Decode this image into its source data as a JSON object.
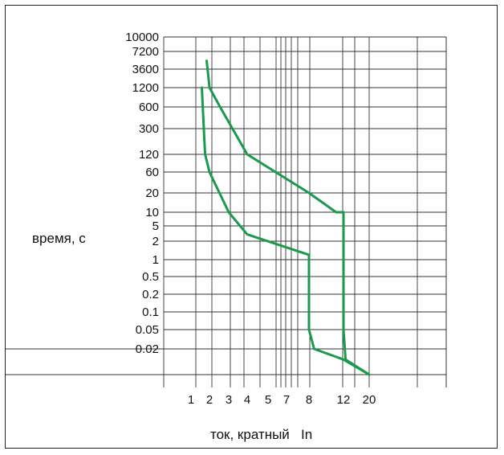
{
  "chart_data": {
    "type": "line",
    "ylabel": "время, с",
    "xlabel": "ток, кратный   In",
    "y_ticks": [
      "10000",
      "7200",
      "3600",
      "1200",
      "600",
      "300",
      "120",
      "60",
      "20",
      "10",
      "5",
      "2",
      "1",
      "0.5",
      "0.2",
      "0.1",
      "0.05",
      "0.02"
    ],
    "x_ticks": [
      "1",
      "2",
      "3",
      "4",
      "5",
      "7",
      "8",
      "12",
      "20"
    ],
    "series": [
      {
        "points": [
          [
            1.5,
            1200
          ],
          [
            1.7,
            120
          ],
          [
            2,
            60
          ],
          [
            3,
            10
          ],
          [
            4,
            3
          ],
          [
            8,
            1.2
          ],
          [
            8,
            0.05
          ],
          [
            8.5,
            0.02
          ],
          [
            12,
            0.015
          ],
          [
            20,
            0.01
          ]
        ]
      },
      {
        "points": [
          [
            1.8,
            5000
          ],
          [
            2,
            1200
          ],
          [
            2.5,
            600
          ],
          [
            4,
            120
          ],
          [
            8,
            20
          ],
          [
            11,
            10
          ],
          [
            12,
            10
          ],
          [
            12,
            0.05
          ],
          [
            12.5,
            0.015
          ],
          [
            20,
            0.01
          ]
        ]
      }
    ],
    "colors": {
      "curve": "#1a9a4a",
      "grid": "#333333",
      "text": "#111111"
    }
  }
}
